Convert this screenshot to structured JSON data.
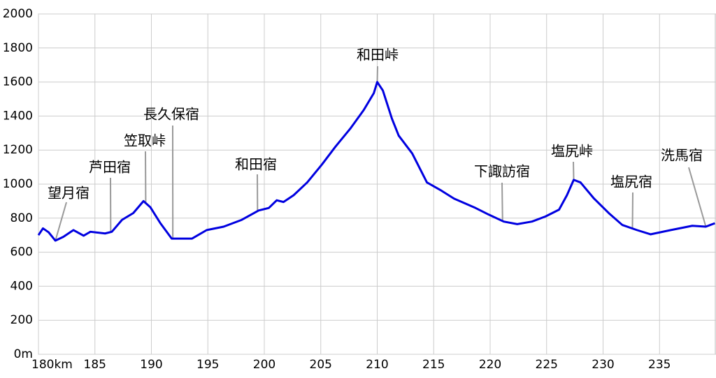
{
  "chart_data": {
    "type": "line",
    "x": [
      180,
      180.4,
      180.9,
      181.5,
      182.2,
      183.1,
      184.0,
      184.6,
      185.9,
      186.5,
      187.4,
      188.4,
      189.3,
      189.9,
      190.8,
      191.8,
      192.7,
      193.6,
      194.9,
      196.4,
      198.0,
      199.5,
      200.4,
      201.1,
      201.7,
      202.6,
      203.8,
      205.1,
      206.3,
      207.6,
      208.8,
      209.7,
      210.0,
      210.5,
      211.3,
      211.9,
      213.1,
      214.4,
      215.6,
      216.8,
      218.7,
      219.9,
      221.2,
      222.4,
      223.7,
      224.9,
      226.1,
      226.8,
      227.4,
      228.0,
      229.2,
      230.5,
      231.7,
      233.0,
      234.2,
      236.0,
      237.9,
      239.1,
      239.9
    ],
    "series": [
      {
        "color": "#0000e0",
        "values": [
          700,
          740,
          717,
          668,
          690,
          730,
          697,
          720,
          710,
          720,
          790,
          830,
          900,
          865,
          770,
          680,
          680,
          680,
          730,
          750,
          790,
          845,
          860,
          905,
          895,
          935,
          1010,
          1115,
          1220,
          1325,
          1435,
          1535,
          1600,
          1550,
          1385,
          1285,
          1180,
          1010,
          965,
          915,
          860,
          820,
          780,
          765,
          780,
          810,
          850,
          935,
          1025,
          1010,
          915,
          830,
          760,
          730,
          705,
          730,
          755,
          750,
          770
        ]
      }
    ],
    "xlim": [
      180,
      240
    ],
    "xticks": [
      {
        "value": 180,
        "label": "180km"
      },
      185,
      190,
      195,
      200,
      205,
      210,
      215,
      220,
      225,
      230,
      235
    ],
    "ylim": [
      0,
      2000
    ],
    "yticks": [
      {
        "value": 0,
        "label": "0m"
      },
      200,
      400,
      600,
      800,
      1000,
      1200,
      1400,
      1600,
      1800,
      2000
    ],
    "grid": true,
    "annotations": [
      {
        "text": "望月宿",
        "x": 181.5
      },
      {
        "text": "芦田宿",
        "x": 186.4
      },
      {
        "text": "笠取峠",
        "x": 189.5
      },
      {
        "text": "長久保宿",
        "x": 191.9
      },
      {
        "text": "和田宿",
        "x": 199.4
      },
      {
        "text": "和田峠",
        "x": 210.0
      },
      {
        "text": "下諏訪宿",
        "x": 221.1
      },
      {
        "text": "塩尻峠",
        "x": 227.4
      },
      {
        "text": "塩尻宿",
        "x": 232.6
      },
      {
        "text": "洗馬宿",
        "x": 239.1
      }
    ]
  }
}
